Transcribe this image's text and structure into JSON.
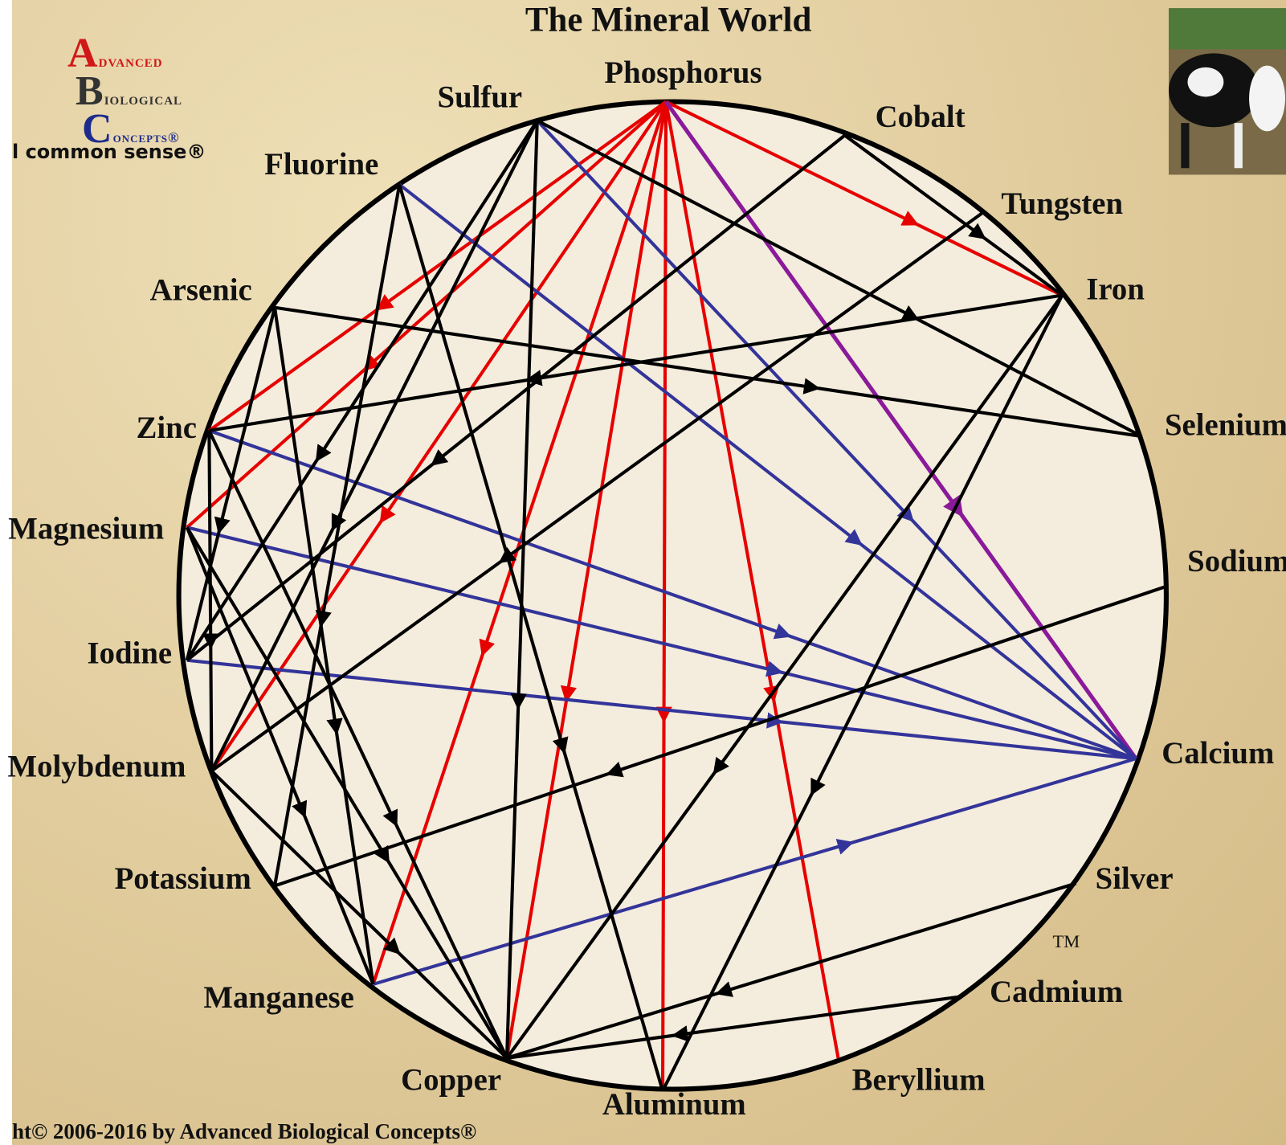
{
  "header": {
    "title": "The Mineral World"
  },
  "logo": {
    "line1": "Advanced",
    "line2": "Biological",
    "line3": "Concepts®",
    "tagline": "l common sense®"
  },
  "nodes": [
    {
      "label": "Phosphorus"
    },
    {
      "label": "Sulfur"
    },
    {
      "label": "Cobalt"
    },
    {
      "label": "Fluorine"
    },
    {
      "label": "Tungsten"
    },
    {
      "label": "Iron"
    },
    {
      "label": "Arsenic"
    },
    {
      "label": "Selenium"
    },
    {
      "label": "Zinc"
    },
    {
      "label": "Magnesium"
    },
    {
      "label": "Sodium"
    },
    {
      "label": "Iodine"
    },
    {
      "label": "Calcium"
    },
    {
      "label": "Molybdenum"
    },
    {
      "label": "Potassium"
    },
    {
      "label": "Silver"
    },
    {
      "label": "Cadmium"
    },
    {
      "label": "Manganese"
    },
    {
      "label": "Copper"
    },
    {
      "label": "Aluminum"
    },
    {
      "label": "Beryllium"
    }
  ],
  "trademark": "TM",
  "footer": {
    "copyright": "ht© 2006-2016 by Advanced Biological Concepts®"
  }
}
